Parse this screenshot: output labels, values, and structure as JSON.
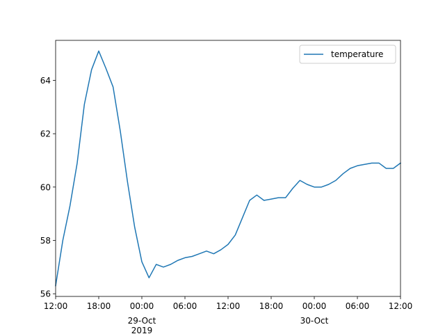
{
  "chart_data": {
    "type": "line",
    "title": "",
    "xlabel": "",
    "ylabel": "",
    "legend": {
      "placement": "top-right",
      "entries": [
        "temperature"
      ]
    },
    "grid": false,
    "series": [
      {
        "name": "temperature",
        "color": "#1f77b4",
        "x": [
          "2019-10-28 12:00",
          "2019-10-28 13:00",
          "2019-10-28 14:00",
          "2019-10-28 15:00",
          "2019-10-28 16:00",
          "2019-10-28 17:00",
          "2019-10-28 18:00",
          "2019-10-28 19:00",
          "2019-10-28 20:00",
          "2019-10-28 21:00",
          "2019-10-28 22:00",
          "2019-10-28 23:00",
          "2019-10-29 00:00",
          "2019-10-29 01:00",
          "2019-10-29 02:00",
          "2019-10-29 03:00",
          "2019-10-29 04:00",
          "2019-10-29 05:00",
          "2019-10-29 06:00",
          "2019-10-29 07:00",
          "2019-10-29 08:00",
          "2019-10-29 09:00",
          "2019-10-29 10:00",
          "2019-10-29 11:00",
          "2019-10-29 12:00",
          "2019-10-29 13:00",
          "2019-10-29 14:00",
          "2019-10-29 15:00",
          "2019-10-29 16:00",
          "2019-10-29 17:00",
          "2019-10-29 18:00",
          "2019-10-29 19:00",
          "2019-10-29 20:00",
          "2019-10-29 21:00",
          "2019-10-29 22:00",
          "2019-10-29 23:00",
          "2019-10-30 00:00",
          "2019-10-30 01:00",
          "2019-10-30 02:00",
          "2019-10-30 03:00",
          "2019-10-30 04:00",
          "2019-10-30 05:00",
          "2019-10-30 06:00",
          "2019-10-30 07:00",
          "2019-10-30 08:00",
          "2019-10-30 09:00",
          "2019-10-30 10:00",
          "2019-10-30 11:00",
          "2019-10-30 12:00"
        ],
        "values": [
          56.3,
          58.0,
          59.3,
          60.9,
          63.1,
          64.4,
          65.1,
          64.45,
          63.75,
          62.1,
          60.2,
          58.5,
          57.2,
          56.6,
          57.1,
          57.0,
          57.1,
          57.25,
          57.35,
          57.4,
          57.5,
          57.6,
          57.5,
          57.65,
          57.85,
          58.2,
          58.85,
          59.5,
          59.7,
          59.5,
          59.55,
          59.6,
          59.6,
          59.95,
          60.25,
          60.1,
          60.0,
          60.0,
          60.1,
          60.25,
          60.5,
          60.7,
          60.8,
          60.85,
          60.9,
          60.9,
          60.7,
          60.7,
          60.9
        ]
      }
    ],
    "xlim": [
      "2019-10-28 12:00",
      "2019-10-30 12:00"
    ],
    "ylim": [
      55.9,
      65.5
    ],
    "xticks": [
      {
        "value": "2019-10-28 12:00",
        "label": "12:00"
      },
      {
        "value": "2019-10-28 18:00",
        "label": "18:00"
      },
      {
        "value": "2019-10-29 00:00",
        "label": "00:00",
        "sublabel": "29-Oct",
        "sublabel2": "2019"
      },
      {
        "value": "2019-10-29 06:00",
        "label": "06:00"
      },
      {
        "value": "2019-10-29 12:00",
        "label": "12:00"
      },
      {
        "value": "2019-10-29 18:00",
        "label": "18:00"
      },
      {
        "value": "2019-10-30 00:00",
        "label": "00:00",
        "sublabel": "30-Oct"
      },
      {
        "value": "2019-10-30 06:00",
        "label": "06:00"
      },
      {
        "value": "2019-10-30 12:00",
        "label": "12:00"
      }
    ],
    "yticks": [
      56,
      58,
      60,
      62,
      64
    ]
  }
}
